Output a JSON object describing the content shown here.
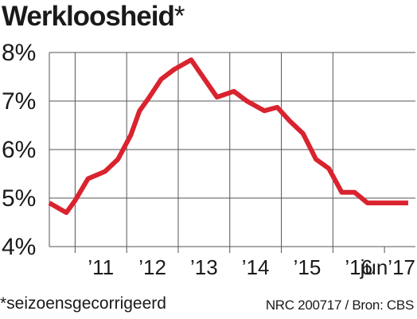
{
  "title": "Werkloosheid",
  "title_mark": "*",
  "footnote": "*seizoensgecorrigeerd",
  "source": "NRC 200717 / Bron: CBS",
  "colors": {
    "line": "#d9232e",
    "grid": "#555555",
    "text": "#1a1a1a"
  },
  "chart_data": {
    "type": "line",
    "title": "Werkloosheid",
    "xlabel": "",
    "ylabel": "",
    "ylim": [
      4,
      8
    ],
    "xlim": [
      2010.5,
      2017.6
    ],
    "yticks": [
      {
        "value": 4,
        "label": "4%"
      },
      {
        "value": 5,
        "label": "5%"
      },
      {
        "value": 6,
        "label": "6%"
      },
      {
        "value": 7,
        "label": "7%"
      },
      {
        "value": 8,
        "label": "8%"
      }
    ],
    "xticks": [
      {
        "value": 2011,
        "label": "’11"
      },
      {
        "value": 2012,
        "label": "’12"
      },
      {
        "value": 2013,
        "label": "’13"
      },
      {
        "value": 2014,
        "label": "’14"
      },
      {
        "value": 2015,
        "label": "’15"
      },
      {
        "value": 2016,
        "label": "’16"
      },
      {
        "value": 2017,
        "label": "jun’17"
      }
    ],
    "grid": true,
    "series": [
      {
        "x": [
          2010.5,
          2010.83,
          2011.0,
          2011.25,
          2011.58,
          2011.83,
          2012.08,
          2012.25,
          2012.42,
          2012.67,
          2012.92,
          2013.25,
          2013.75,
          2014.08,
          2014.33,
          2014.67,
          2014.92,
          2015.17,
          2015.42,
          2015.67,
          2015.92,
          2016.17,
          2016.42,
          2016.67,
          2016.92,
          2017.25,
          2017.42,
          2017.46
        ],
        "y": [
          4.9,
          4.7,
          4.95,
          5.4,
          5.55,
          5.8,
          6.3,
          6.8,
          7.05,
          7.45,
          7.65,
          7.85,
          7.08,
          7.2,
          7.0,
          6.8,
          6.87,
          6.58,
          6.33,
          5.8,
          5.61,
          5.12,
          5.12,
          4.9,
          4.9,
          4.9,
          4.9,
          4.9
        ],
        "color": "#d9232e"
      }
    ]
  }
}
